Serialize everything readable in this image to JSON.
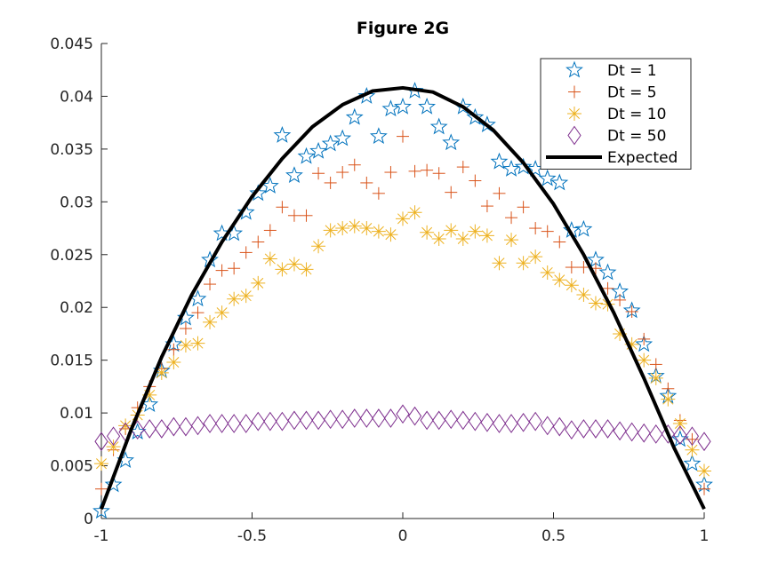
{
  "chart_data": {
    "type": "scatter",
    "title": "Figure 2G",
    "xlabel": "",
    "ylabel": "",
    "xlim": [
      -1,
      1
    ],
    "ylim": [
      0,
      0.045
    ],
    "x_ticks": [
      "-1",
      "-0.5",
      "0",
      "0.5",
      "1"
    ],
    "y_ticks": [
      "0",
      "0.005",
      "0.01",
      "0.015",
      "0.02",
      "0.025",
      "0.03",
      "0.035",
      "0.04",
      "0.045"
    ],
    "grid": false,
    "legend_position": "top-right",
    "x": [
      -1.0,
      -0.96,
      -0.92,
      -0.88,
      -0.84,
      -0.8,
      -0.76,
      -0.72,
      -0.68,
      -0.64,
      -0.6,
      -0.56,
      -0.52,
      -0.48,
      -0.44,
      -0.4,
      -0.36,
      -0.32,
      -0.28,
      -0.24,
      -0.2,
      -0.16,
      -0.12,
      -0.08,
      -0.04,
      0.0,
      0.04,
      0.08,
      0.12,
      0.16,
      0.2,
      0.24,
      0.28,
      0.32,
      0.36,
      0.4,
      0.44,
      0.48,
      0.52,
      0.56,
      0.6,
      0.64,
      0.68,
      0.72,
      0.76,
      0.8,
      0.84,
      0.88,
      0.92,
      0.96,
      1.0
    ],
    "series": [
      {
        "name": "Dt = 1",
        "marker": "pentagram",
        "color": "#0072BD",
        "y": [
          0.0007,
          0.0032,
          0.0055,
          0.0082,
          0.0108,
          0.014,
          0.0165,
          0.019,
          0.0208,
          0.0245,
          0.027,
          0.027,
          0.029,
          0.0308,
          0.0315,
          0.0363,
          0.0325,
          0.0343,
          0.0348,
          0.0355,
          0.036,
          0.038,
          0.04,
          0.0362,
          0.0388,
          0.039,
          0.0405,
          0.039,
          0.0371,
          0.0356,
          0.039,
          0.038,
          0.0373,
          0.0338,
          0.0331,
          0.0333,
          0.0331,
          0.0322,
          0.0318,
          0.0273,
          0.0274,
          0.0245,
          0.0233,
          0.0215,
          0.0197,
          0.0165,
          0.0135,
          0.0116,
          0.0075,
          0.0052,
          0.0032
        ]
      },
      {
        "name": "Dt = 5",
        "marker": "plus",
        "color": "#D95319",
        "y": [
          0.0028,
          0.0065,
          0.0085,
          0.0105,
          0.0125,
          0.0142,
          0.016,
          0.018,
          0.0195,
          0.0222,
          0.0235,
          0.0237,
          0.0252,
          0.0262,
          0.0273,
          0.0295,
          0.0287,
          0.0287,
          0.0327,
          0.0318,
          0.0328,
          0.0335,
          0.0318,
          0.0308,
          0.0328,
          0.0362,
          0.0329,
          0.033,
          0.0327,
          0.0309,
          0.0333,
          0.032,
          0.0296,
          0.0308,
          0.0285,
          0.0295,
          0.0275,
          0.0272,
          0.0262,
          0.0238,
          0.0238,
          0.0237,
          0.0218,
          0.0207,
          0.0196,
          0.017,
          0.0146,
          0.0123,
          0.0093,
          0.0075,
          0.0028
        ]
      },
      {
        "name": "Dt = 10",
        "marker": "asterisk",
        "color": "#EDB120",
        "y": [
          0.0052,
          0.0068,
          0.0088,
          0.0098,
          0.0117,
          0.0138,
          0.0148,
          0.0164,
          0.0166,
          0.0186,
          0.0195,
          0.0208,
          0.0211,
          0.0223,
          0.0246,
          0.0236,
          0.0241,
          0.0236,
          0.0258,
          0.0273,
          0.0275,
          0.0277,
          0.0275,
          0.0272,
          0.0269,
          0.0284,
          0.029,
          0.0271,
          0.0265,
          0.0273,
          0.0265,
          0.0272,
          0.0268,
          0.0242,
          0.0264,
          0.0242,
          0.0248,
          0.0233,
          0.0226,
          0.0221,
          0.0212,
          0.0204,
          0.0203,
          0.0175,
          0.0165,
          0.015,
          0.0133,
          0.0113,
          0.009,
          0.0065,
          0.0045
        ]
      },
      {
        "name": "Dt = 50",
        "marker": "diamond",
        "color": "#7E2F8E",
        "y": [
          0.0073,
          0.0078,
          0.0082,
          0.0084,
          0.0085,
          0.0085,
          0.0087,
          0.0087,
          0.0088,
          0.009,
          0.009,
          0.009,
          0.009,
          0.0092,
          0.0092,
          0.0092,
          0.0093,
          0.0093,
          0.0093,
          0.0094,
          0.0094,
          0.0095,
          0.0095,
          0.0095,
          0.0095,
          0.0099,
          0.0097,
          0.0093,
          0.0093,
          0.0094,
          0.0093,
          0.0092,
          0.0091,
          0.009,
          0.009,
          0.0091,
          0.0092,
          0.0088,
          0.0087,
          0.0084,
          0.0085,
          0.0085,
          0.0085,
          0.0083,
          0.0082,
          0.0081,
          0.008,
          0.008,
          0.0079,
          0.0078,
          0.0073
        ]
      },
      {
        "name": "Expected",
        "type": "line",
        "color": "#000000",
        "x": [
          -1.0,
          -0.9,
          -0.8,
          -0.7,
          -0.6,
          -0.5,
          -0.4,
          -0.3,
          -0.2,
          -0.1,
          0.0,
          0.1,
          0.2,
          0.3,
          0.4,
          0.5,
          0.6,
          0.7,
          0.8,
          0.9,
          1.0
        ],
        "y": [
          0.0009,
          0.0085,
          0.0153,
          0.0212,
          0.0262,
          0.0305,
          0.0341,
          0.0371,
          0.0392,
          0.0405,
          0.0408,
          0.0404,
          0.039,
          0.0368,
          0.0337,
          0.0298,
          0.025,
          0.0195,
          0.0133,
          0.0067,
          0.0009
        ]
      }
    ]
  }
}
